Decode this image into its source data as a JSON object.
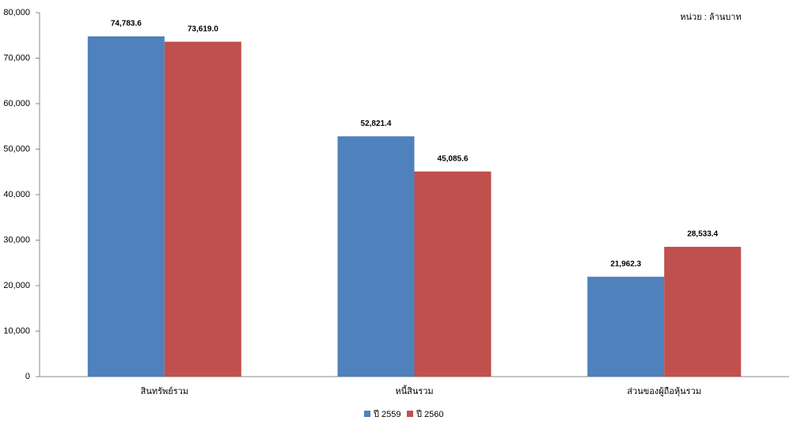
{
  "chart_data": {
    "type": "bar",
    "annotation": "หน่วย : ล้านบาท",
    "categories": [
      "สินทรัพย์รวม",
      "หนี้สินรวม",
      "ส่วนของผู้ถือหุ้นรวม"
    ],
    "series": [
      {
        "name": "ปี 2559",
        "color": "#4f81bd",
        "values": [
          74783.6,
          52821.4,
          21962.3
        ],
        "value_labels": [
          "74,783.6",
          "52,821.4",
          "21,962.3"
        ]
      },
      {
        "name": "ปี 2560",
        "color": "#c0504d",
        "values": [
          73619.0,
          45085.6,
          28533.4
        ],
        "value_labels": [
          "73,619.0",
          "45,085.6",
          "28,533.4"
        ]
      }
    ],
    "ylim": [
      0,
      80000
    ],
    "yticks": [
      0,
      {
        "value": 10000,
        "label": "10,000"
      },
      {
        "value": 20000,
        "label": "20,000"
      },
      {
        "value": 30000,
        "label": "30,000"
      },
      {
        "value": 40000,
        "label": "40,000"
      },
      {
        "value": 50000,
        "label": "50,000"
      },
      {
        "value": 60000,
        "label": "60,000"
      },
      {
        "value": 70000,
        "label": "70,000"
      },
      {
        "value": 80000,
        "label": "80,000"
      }
    ],
    "legend": "bottom"
  }
}
